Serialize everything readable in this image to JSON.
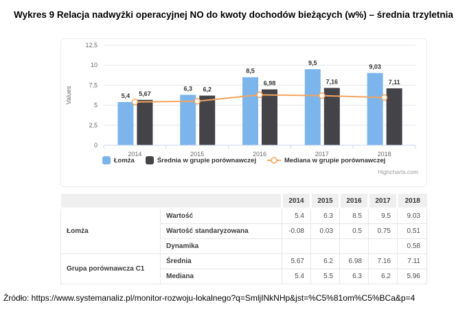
{
  "title": "Wykres 9 Relacja nadwyżki operacyjnej NO do kwoty dochodów bieżących (w%) – średnia trzyletnia",
  "chart_data": {
    "type": "bar",
    "categories": [
      "2014",
      "2015",
      "2016",
      "2017",
      "2018"
    ],
    "series": [
      {
        "name": "Łomża",
        "type": "column",
        "color": "#7cb5ec",
        "values": [
          5.4,
          6.3,
          8.5,
          9.5,
          9.03
        ],
        "labels": [
          "5,4",
          "6,3",
          "8,5",
          "9,5",
          "9,03"
        ]
      },
      {
        "name": "Średnia w grupie porównawczej",
        "type": "column",
        "color": "#434348",
        "values": [
          5.67,
          6.2,
          6.98,
          7.16,
          7.11
        ],
        "labels": [
          "5,67",
          "6,2",
          "6,98",
          "7,16",
          "7,11"
        ]
      },
      {
        "name": "Mediana w grupie porównawczej",
        "type": "line",
        "color": "#f7a35c",
        "values": [
          5.4,
          5.5,
          6.3,
          6.2,
          5.96
        ]
      }
    ],
    "title": "",
    "xlabel": "",
    "ylabel": "Values",
    "ylim": [
      0,
      12.5
    ],
    "yticks": [
      0,
      2.5,
      5,
      7.5,
      10,
      12.5
    ],
    "ytick_labels": [
      "0",
      "2,5",
      "5",
      "7,5",
      "10",
      "12,5"
    ],
    "grid": true,
    "legend_position": "bottom",
    "grid_color": "#e6e6e6",
    "axis_color": "#ccd6eb",
    "tick_label_color": "#666666",
    "data_label_color": "#333333",
    "credits": "Highcharts.com"
  },
  "table": {
    "years": [
      "2014",
      "2015",
      "2016",
      "2017",
      "2018"
    ],
    "groups": [
      {
        "name": "Łomża",
        "rows": [
          {
            "label": "Wartość",
            "values": [
              "5.4",
              "6.3",
              "8.5",
              "9.5",
              "9.03"
            ]
          },
          {
            "label": "Wartość standaryzowana",
            "values": [
              "-0.08",
              "0.03",
              "0.5",
              "0.75",
              "0.51"
            ]
          },
          {
            "label": "Dynamika",
            "values": [
              "",
              "",
              "",
              "",
              "0.58"
            ]
          }
        ]
      },
      {
        "name": "Grupa porównawcza C1",
        "rows": [
          {
            "label": "Średnia",
            "values": [
              "5.67",
              "6.2",
              "6.98",
              "7.16",
              "7.11"
            ]
          },
          {
            "label": "Mediana",
            "values": [
              "5.4",
              "5.5",
              "6.3",
              "6.2",
              "5.96"
            ]
          }
        ]
      }
    ]
  },
  "source": "Źródło: https://www.systemanaliz.pl/monitor-rozwoju-lokalnego?q=SmljINkNHp&jst=%C5%81om%C5%BCa&p=4"
}
